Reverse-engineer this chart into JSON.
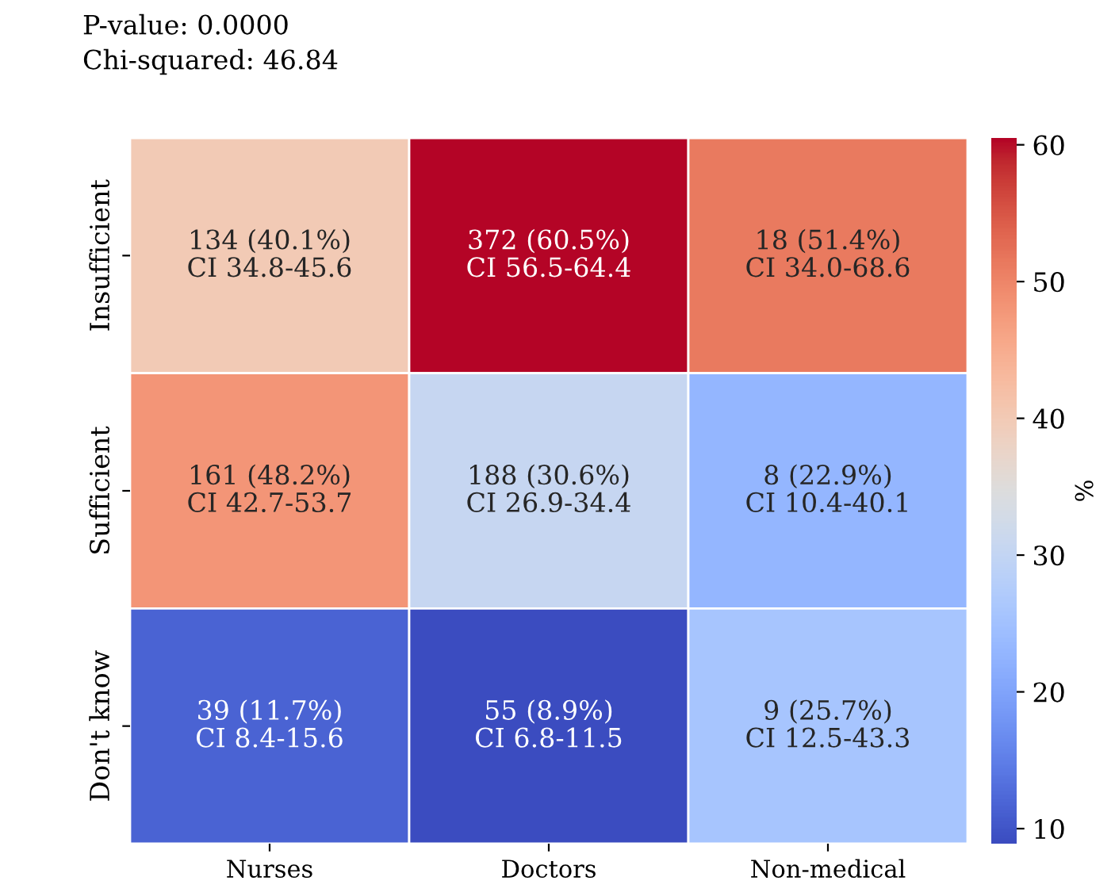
{
  "chart_data": {
    "type": "heatmap",
    "categories": [
      "Nurses",
      "Doctors",
      "Non-medical"
    ],
    "y_categories": [
      "Insufficient",
      "Sufficient",
      "Don't know"
    ],
    "cells": [
      [
        40.1,
        60.5,
        51.4
      ],
      [
        48.2,
        30.6,
        22.9
      ],
      [
        11.7,
        8.9,
        25.7
      ]
    ],
    "cell_labels": [
      [
        "134 (40.1%)\nCI 34.8-45.6",
        "372 (60.5%)\nCI 56.5-64.4",
        "18 (51.4%)\nCI 34.0-68.6"
      ],
      [
        "161 (48.2%)\nCI 42.7-53.7",
        "188 (30.6%)\nCI 26.9-34.4",
        "8 (22.9%)\nCI 10.4-40.1"
      ],
      [
        "39 (11.7%)\nCI 8.4-15.6",
        "55 (8.9%)\nCI 6.8-11.5",
        "9 (25.7%)\nCI 12.5-43.3"
      ]
    ],
    "clim": [
      8.9,
      60.5
    ],
    "cticks": [
      10,
      20,
      30,
      40,
      50,
      60
    ],
    "clabel": "%",
    "annotations": [
      "P-value: 0.0000",
      "Chi-squared: 46.84"
    ]
  }
}
